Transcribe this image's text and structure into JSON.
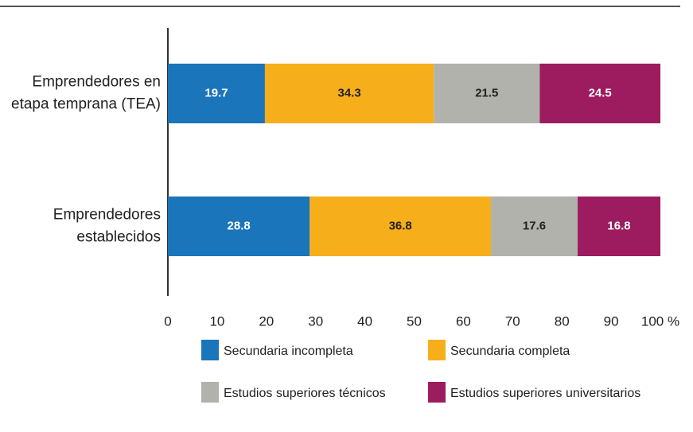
{
  "chart_data": {
    "type": "stacked-barh",
    "categories": [
      [
        "Emprendedores en",
        "etapa temprana (TEA)"
      ],
      [
        "Emprendedores",
        "establecidos"
      ]
    ],
    "series": [
      {
        "name": "Secundaria incompleta",
        "color": "#1a75bb",
        "label_color": "#ffffff",
        "values": [
          19.7,
          28.8
        ]
      },
      {
        "name": "Secundaria completa",
        "color": "#f7ae1b",
        "label_color": "#222222",
        "values": [
          34.3,
          36.8
        ]
      },
      {
        "name": "Estudios superiores técnicos",
        "color": "#b1b2ab",
        "label_color": "#222222",
        "values": [
          21.5,
          17.6
        ]
      },
      {
        "name": "Estudios superiores universitarios",
        "color": "#9c1c5f",
        "label_color": "#ffffff",
        "values": [
          24.5,
          16.8
        ]
      }
    ],
    "xlim": [
      0,
      100
    ],
    "xticks": [
      0,
      10,
      20,
      30,
      40,
      50,
      60,
      70,
      80,
      90,
      {
        "value": 100,
        "label": "100 %"
      }
    ]
  }
}
